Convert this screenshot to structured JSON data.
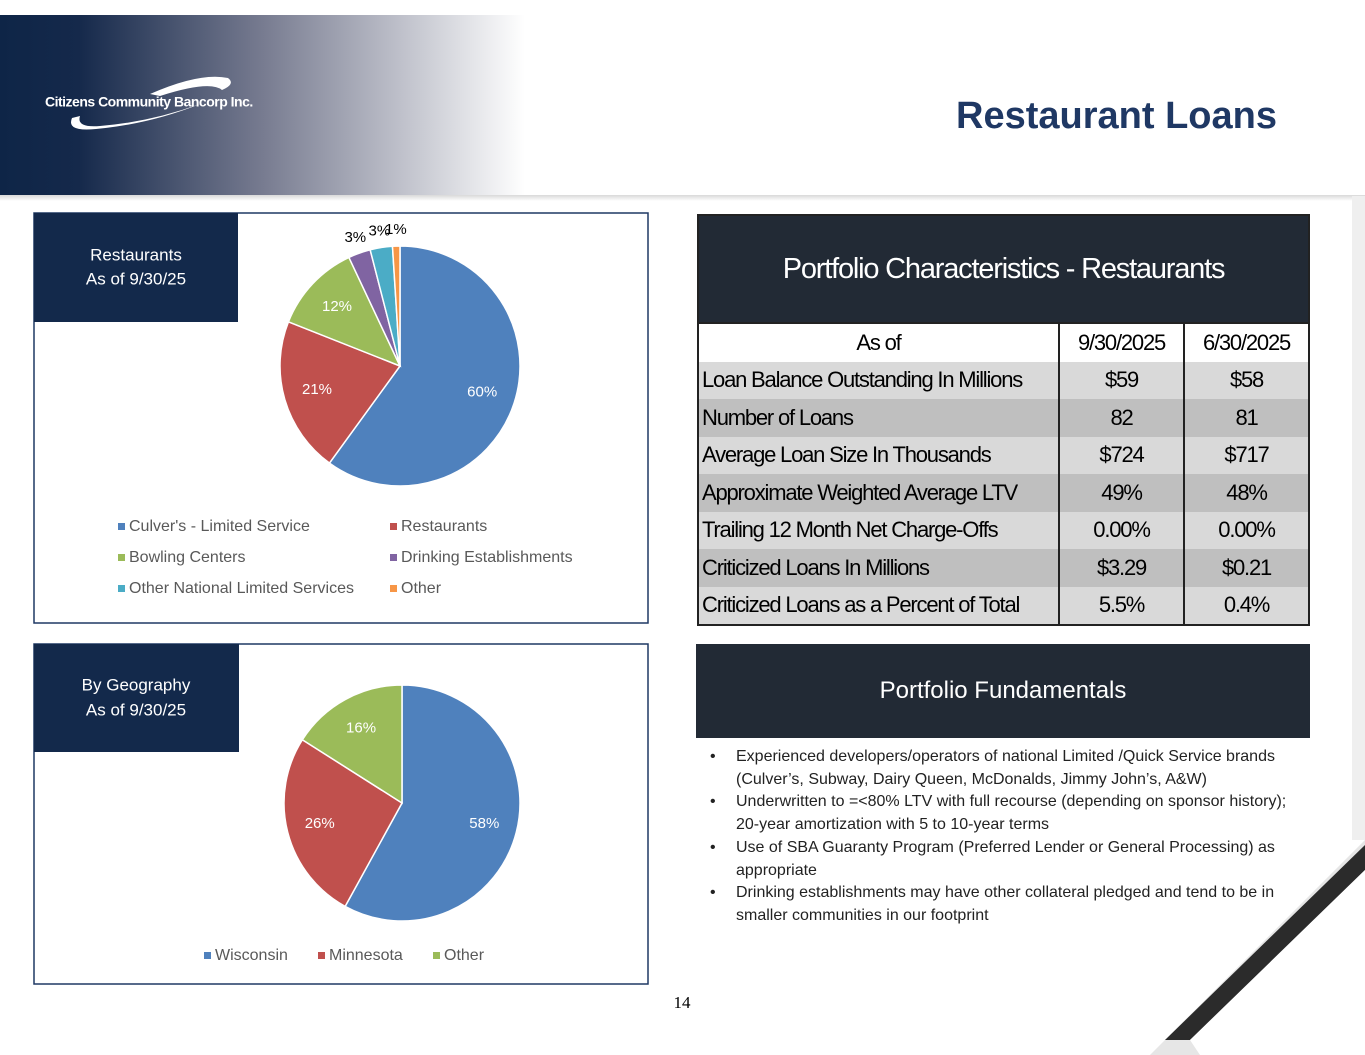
{
  "header": {
    "logo": "Citizens Community Bancorp Inc.",
    "title": "Restaurant Loans"
  },
  "chart_data": [
    {
      "type": "pie",
      "title": "Restaurants",
      "subtitle": "As of 9/30/25",
      "categories": [
        "Culver's - Limited Service",
        "Restaurants",
        "Bowling Centers",
        "Drinking Establishments",
        "Other National Limited Services",
        "Other"
      ],
      "values": [
        60,
        21,
        12,
        3,
        3,
        1
      ],
      "value_labels": [
        "60%",
        "21%",
        "12%",
        "3%",
        "3%",
        "1%"
      ],
      "colors": [
        "#4f81bd",
        "#c0504d",
        "#9bbb59",
        "#8064a2",
        "#4bacc6",
        "#f79646"
      ]
    },
    {
      "type": "pie",
      "title": "By Geography",
      "subtitle": "As of 9/30/25",
      "categories": [
        "Wisconsin",
        "Minnesota",
        "Other"
      ],
      "values": [
        58,
        26,
        16
      ],
      "value_labels": [
        "58%",
        "26%",
        "16%"
      ],
      "colors": [
        "#4f81bd",
        "#c0504d",
        "#9bbb59"
      ]
    }
  ],
  "table": {
    "title": "Portfolio Characteristics - Restaurants",
    "columns": [
      "As of",
      "9/30/2025",
      "6/30/2025"
    ],
    "rows": [
      [
        "Loan Balance Outstanding In Millions",
        "$59",
        "$58"
      ],
      [
        "Number of Loans",
        "82",
        "81"
      ],
      [
        "Average Loan Size In Thousands",
        "$724",
        "$717"
      ],
      [
        "Approximate Weighted Average LTV",
        "49%",
        "48%"
      ],
      [
        "Trailing 12 Month Net Charge-Offs",
        "0.00%",
        "0.00%"
      ],
      [
        "Criticized Loans In Millions",
        "$3.29",
        "$0.21"
      ],
      [
        "Criticized Loans as a Percent of Total",
        "5.5%",
        "0.4%"
      ]
    ]
  },
  "fundamentals": {
    "title": "Portfolio Fundamentals",
    "bullets": [
      "Experienced developers/operators of national Limited /Quick Service brands (Culver’s, Subway, Dairy Queen, McDonalds, Jimmy John’s, A&W)",
      "Underwritten to =<80% LTV with full recourse (depending on sponsor history); 20-year amortization with 5 to 10-year terms",
      "Use of SBA Guaranty Program (Preferred Lender or General Processing) as appropriate",
      "Drinking establishments may have other collateral pledged and tend to be in smaller communities in our footprint"
    ]
  },
  "page_number": "14"
}
